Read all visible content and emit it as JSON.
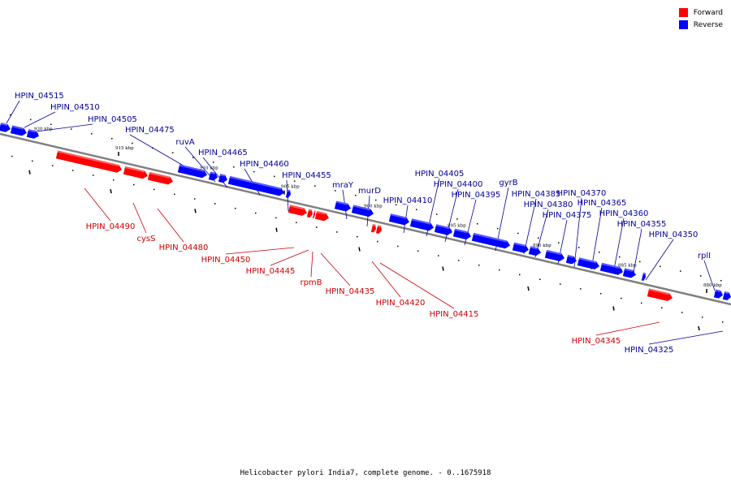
{
  "title": "Helicobacter pylori India7, complete genome. - 0..1675918",
  "legend": [
    {
      "label": "Forward",
      "color": "#ff0000"
    },
    {
      "label": "Reverse",
      "color": "#0000ff"
    }
  ],
  "colors": {
    "forward": "#ff0000",
    "forward_label": "#cc0000",
    "reverse": "#0000ff",
    "reverse_label": "#000099",
    "backbone": "#808080"
  },
  "scale_labels": [
    "920 kbp",
    "915 kbp",
    "910 kbp",
    "905 kbp",
    "900 kbp",
    "895 kbp",
    "890 kbp",
    "885 kbp",
    "880 kbp"
  ],
  "genes": [
    {
      "name": "HPIN_04515",
      "strand": "reverse"
    },
    {
      "name": "HPIN_04510",
      "strand": "reverse"
    },
    {
      "name": "HPIN_04505",
      "strand": "reverse"
    },
    {
      "name": "HPIN_04490",
      "strand": "forward"
    },
    {
      "name": "cysS",
      "strand": "forward"
    },
    {
      "name": "HPIN_04480",
      "strand": "forward"
    },
    {
      "name": "HPIN_04475",
      "strand": "reverse"
    },
    {
      "name": "ruvA",
      "strand": "reverse"
    },
    {
      "name": "HPIN_04465",
      "strand": "reverse"
    },
    {
      "name": "HPIN_04460",
      "strand": "reverse"
    },
    {
      "name": "HPIN_04455",
      "strand": "reverse"
    },
    {
      "name": "HPIN_04450",
      "strand": "forward"
    },
    {
      "name": "HPIN_04445",
      "strand": "forward"
    },
    {
      "name": "rpmB",
      "strand": "forward"
    },
    {
      "name": "HPIN_04435",
      "strand": "forward"
    },
    {
      "name": "mraY",
      "strand": "reverse"
    },
    {
      "name": "murD",
      "strand": "reverse"
    },
    {
      "name": "HPIN_04420",
      "strand": "forward"
    },
    {
      "name": "HPIN_04415",
      "strand": "forward"
    },
    {
      "name": "HPIN_04410",
      "strand": "reverse"
    },
    {
      "name": "HPIN_04405",
      "strand": "reverse"
    },
    {
      "name": "HPIN_04400",
      "strand": "reverse"
    },
    {
      "name": "HPIN_04395",
      "strand": "reverse"
    },
    {
      "name": "gyrB",
      "strand": "reverse"
    },
    {
      "name": "HPIN_04385",
      "strand": "reverse"
    },
    {
      "name": "HPIN_04380",
      "strand": "reverse"
    },
    {
      "name": "HPIN_04375",
      "strand": "reverse"
    },
    {
      "name": "HPIN_04370",
      "strand": "reverse"
    },
    {
      "name": "HPIN_04365",
      "strand": "reverse"
    },
    {
      "name": "HPIN_04360",
      "strand": "reverse"
    },
    {
      "name": "HPIN_04355",
      "strand": "reverse"
    },
    {
      "name": "HPIN_04350",
      "strand": "reverse"
    },
    {
      "name": "HPIN_04345",
      "strand": "forward"
    },
    {
      "name": "rplI",
      "strand": "reverse"
    },
    {
      "name": "HPIN_04325",
      "strand": "reverse"
    }
  ]
}
